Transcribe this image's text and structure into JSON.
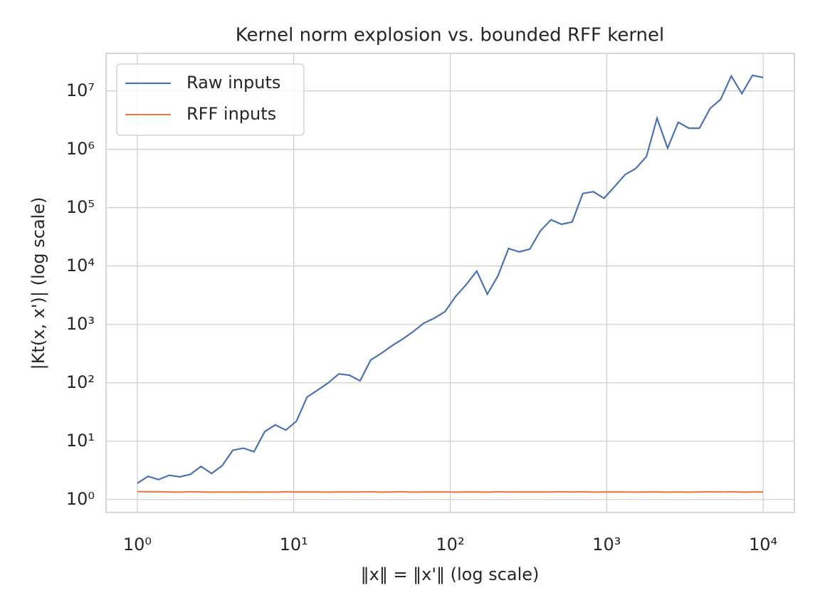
{
  "chart_data": {
    "type": "line",
    "title": "Kernel norm explosion vs. bounded RFF kernel",
    "xlabel": "‖x‖ = ‖x'‖ (log scale)",
    "ylabel": "|Kt(x, x')|  (log scale)",
    "xscale": "log",
    "yscale": "log",
    "grid": true,
    "legend": "upper left",
    "x": [
      1,
      1.169,
      1.367,
      1.597,
      1.867,
      2.183,
      2.551,
      2.983,
      3.487,
      4.076,
      4.764,
      5.569,
      6.51,
      7.61,
      8.896,
      10.4,
      12.16,
      14.21,
      16.61,
      19.42,
      22.7,
      26.53,
      31.01,
      36.25,
      42.38,
      49.55,
      57.92,
      67.7,
      79.14,
      92.51,
      108.1,
      126.4,
      147.8,
      172.7,
      201.9,
      236,
      275.9,
      322.5,
      377,
      440.7,
      515.1,
      602.2,
      703.9,
      822.8,
      961.8,
      1124,
      1314,
      1536,
      1796,
      2099,
      2454,
      2868,
      3353,
      3919,
      4582,
      5356,
      6261,
      7319,
      8556,
      10000
    ],
    "series": [
      {
        "name": "Raw inputs",
        "color": "#4c72b0",
        "values": [
          1.9,
          2.5,
          2.2,
          2.6,
          2.45,
          2.7,
          3.7,
          2.8,
          3.8,
          7,
          7.6,
          6.6,
          14.5,
          19,
          15.5,
          22,
          57,
          75,
          100,
          142,
          135,
          108,
          245,
          320,
          430,
          560,
          750,
          1050,
          1280,
          1650,
          3000,
          4800,
          8200,
          3300,
          6800,
          20000,
          17500,
          19500,
          40000,
          62000,
          52000,
          57000,
          175000,
          188000,
          145000,
          230000,
          370000,
          470000,
          750000,
          3400000,
          1050000,
          2900000,
          2300000,
          2300000,
          5000000,
          7200000,
          18000000,
          9000000,
          18500000,
          17000000
        ]
      },
      {
        "name": "RFF inputs",
        "color": "#dd8452",
        "values": [
          1.37,
          1.36,
          1.36,
          1.35,
          1.34,
          1.36,
          1.35,
          1.34,
          1.35,
          1.34,
          1.35,
          1.34,
          1.35,
          1.34,
          1.36,
          1.35,
          1.35,
          1.35,
          1.34,
          1.35,
          1.35,
          1.35,
          1.36,
          1.34,
          1.35,
          1.36,
          1.34,
          1.35,
          1.35,
          1.35,
          1.34,
          1.35,
          1.35,
          1.34,
          1.36,
          1.35,
          1.35,
          1.35,
          1.35,
          1.35,
          1.36,
          1.35,
          1.36,
          1.34,
          1.35,
          1.35,
          1.35,
          1.34,
          1.35,
          1.35,
          1.34,
          1.35,
          1.34,
          1.35,
          1.36,
          1.35,
          1.36,
          1.34,
          1.35,
          1.35
        ]
      }
    ],
    "xlim": [
      0.631,
      15849
    ],
    "ylim": [
      0.6,
      44000000
    ],
    "xticks": [
      {
        "value": 1,
        "label": "10⁰"
      },
      {
        "value": 10,
        "label": "10¹"
      },
      {
        "value": 100,
        "label": "10²"
      },
      {
        "value": 1000,
        "label": "10³"
      },
      {
        "value": 10000,
        "label": "10⁴"
      }
    ],
    "yticks": [
      {
        "value": 1,
        "label": "10⁰"
      },
      {
        "value": 10,
        "label": "10¹"
      },
      {
        "value": 100,
        "label": "10²"
      },
      {
        "value": 1000,
        "label": "10³"
      },
      {
        "value": 10000,
        "label": "10⁴"
      },
      {
        "value": 100000,
        "label": "10⁵"
      },
      {
        "value": 1000000,
        "label": "10⁶"
      },
      {
        "value": 10000000,
        "label": "10⁷"
      }
    ]
  }
}
